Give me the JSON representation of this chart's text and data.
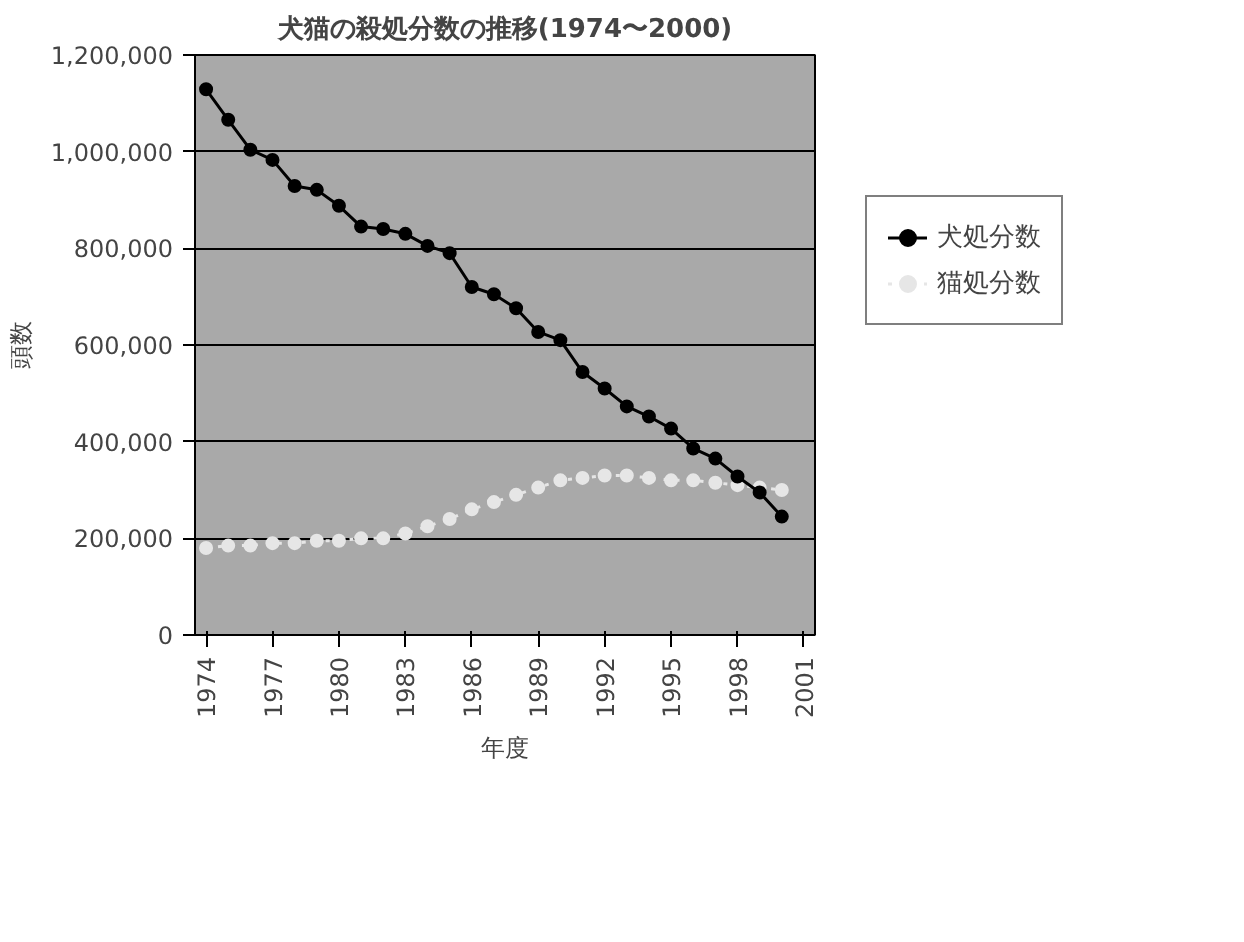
{
  "chart_data": {
    "type": "line",
    "title": "犬猫の殺処分数の推移(1974〜2000)",
    "xlabel": "年度",
    "ylabel": "頭数",
    "categories": [
      "1974",
      null,
      null,
      "1977",
      null,
      null,
      "1980",
      null,
      null,
      "1983",
      null,
      null,
      "1986",
      null,
      null,
      "1989",
      null,
      null,
      "1992",
      null,
      null,
      "1995",
      null,
      null,
      "1998",
      null,
      null,
      "2001"
    ],
    "series": [
      {
        "name": "犬処分数",
        "color": "#000000",
        "marker": "circle",
        "line_style": "solid",
        "values": [
          1129000,
          1066000,
          1004000,
          983000,
          929000,
          921000,
          888000,
          845000,
          840000,
          830000,
          805000,
          790000,
          720000,
          705000,
          676000,
          627000,
          610000,
          544000,
          510000,
          473000,
          452000,
          427000,
          386000,
          365000,
          328000,
          295000,
          245000,
          null
        ]
      },
      {
        "name": "猫処分数",
        "color": "#e6e6e6",
        "marker": "circle",
        "line_style": "dotted",
        "values": [
          180000,
          185000,
          185000,
          190000,
          190000,
          195000,
          195000,
          200000,
          200000,
          210000,
          225000,
          240000,
          260000,
          275000,
          290000,
          305000,
          320000,
          325000,
          330000,
          330000,
          325000,
          320000,
          320000,
          315000,
          310000,
          305000,
          300000,
          null
        ]
      }
    ],
    "ylim": [
      0,
      1200000
    ],
    "yticks": [
      0,
      {
        "value": 200000,
        "label": "200,000"
      },
      {
        "value": 400000,
        "label": "400,000"
      },
      {
        "value": 600000,
        "label": "600,000"
      },
      {
        "value": 800000,
        "label": "800,000"
      },
      {
        "value": 1000000,
        "label": "1,000,000"
      },
      {
        "value": 1200000,
        "label": "1,200,000"
      }
    ],
    "grid": "y",
    "legend": "right"
  }
}
